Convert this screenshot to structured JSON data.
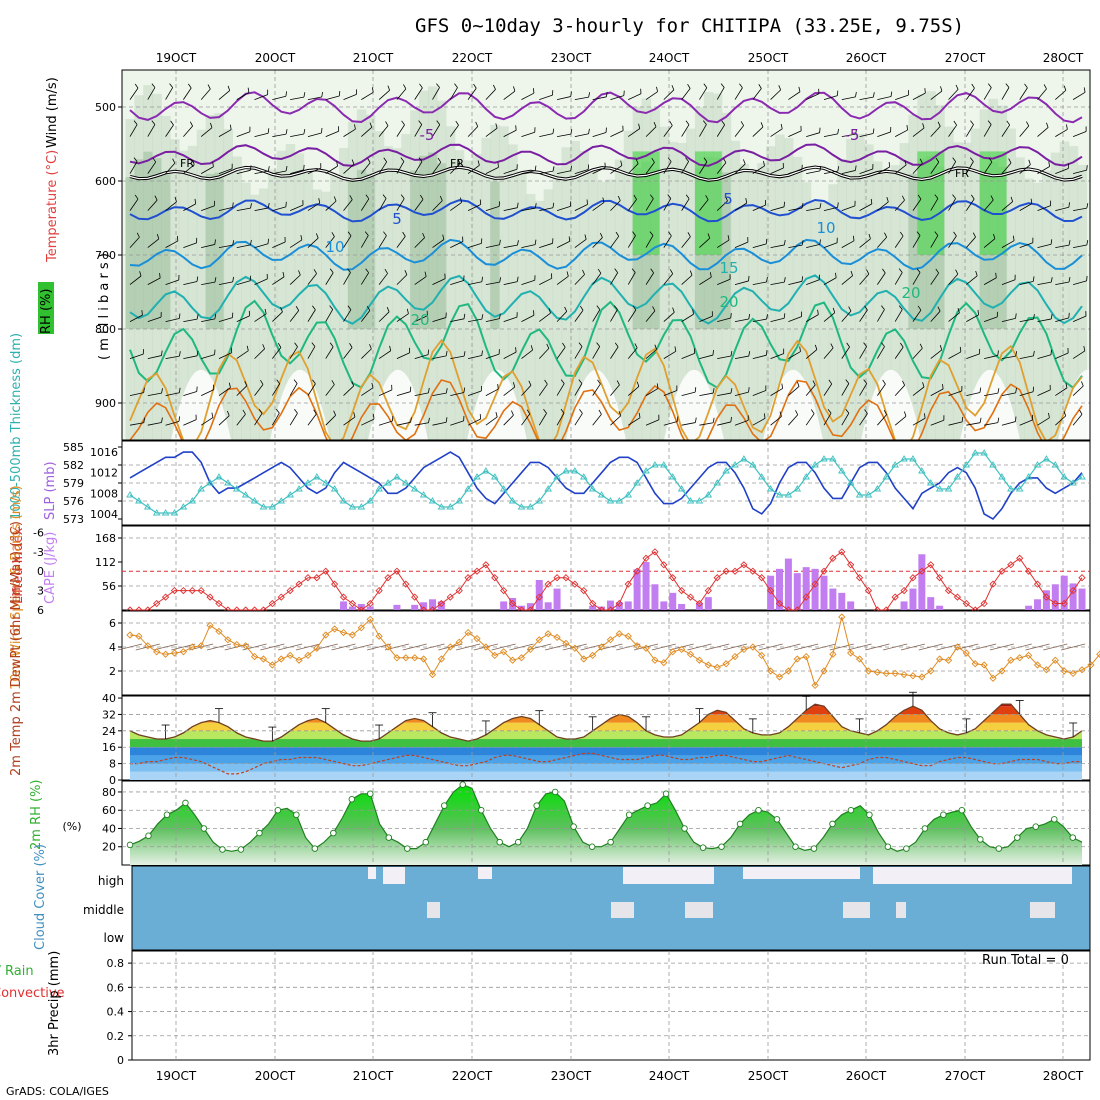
{
  "title": "GFS 0~10day 3-hourly for CHITIPA (33.25E, 9.75S)",
  "footer": "GrADS: COLA/IGES",
  "run_total": "Run Total = 0",
  "dates": [
    "19OCT",
    "20OCT",
    "21OCT",
    "22OCT",
    "23OCT",
    "24OCT",
    "25OCT",
    "26OCT",
    "27OCT",
    "28OCT"
  ],
  "colors": {
    "wind_barb": "#000000",
    "cloud": "#6aaed6",
    "cape": "#c27ef0",
    "lifted": "#e03030",
    "thick": "#40c0c0",
    "slp": "#2040c8",
    "wind10": "#e08a20",
    "rh": "#30c030"
  },
  "chart_data": [
    {
      "type": "heatmap",
      "name": "pressure-level cross section",
      "ylabel_parts": [
        "Wind (m/s)",
        "Temperature (°C)",
        "RH (%)"
      ],
      "ylabel_unit": "( m i l l i b a r s )",
      "yticks": [
        500,
        600,
        700,
        800,
        900
      ],
      "ylim": [
        450,
        950
      ],
      "freezing_label": "FR",
      "temperature_labels": [
        "-5",
        "-5",
        "5",
        "5",
        "10",
        "10",
        "15",
        "20",
        "20",
        "20"
      ]
    },
    {
      "type": "line",
      "name": "thickness and SLP",
      "ylabel_left": "1000-500mb Thickness (dm)",
      "ylabel_right": "SLP (mb)",
      "left_ticks": [
        "585",
        "582",
        "579",
        "576",
        "573"
      ],
      "right_ticks": [
        "1016",
        "1012",
        "1008",
        "1004"
      ],
      "series": [
        {
          "name": "SLP (mb)",
          "values": [
            1011,
            1012,
            1013,
            1014,
            1015,
            1015,
            1016,
            1016,
            1014,
            1010,
            1008,
            1009,
            1009,
            1010,
            1011,
            1012,
            1013,
            1014,
            1013,
            1011,
            1009,
            1008,
            1009,
            1012,
            1014,
            1013,
            1012,
            1011,
            1010,
            1008,
            1008,
            1009,
            1011,
            1013,
            1014,
            1015,
            1016,
            1015,
            1012,
            1009,
            1007,
            1006,
            1008,
            1010,
            1012,
            1014,
            1014,
            1013,
            1011,
            1009,
            1008,
            1008,
            1010,
            1012,
            1014,
            1015,
            1015,
            1014,
            1011,
            1008,
            1006,
            1006,
            1007,
            1009,
            1011,
            1013,
            1014,
            1014,
            1012,
            1009,
            1005,
            1004,
            1006,
            1010,
            1013,
            1014,
            1014,
            1012,
            1009,
            1007,
            1007,
            1010,
            1013,
            1014,
            1014,
            1012,
            1009,
            1007,
            1005,
            1008,
            1009,
            1010,
            1012,
            1013,
            1012,
            1009,
            1004,
            1003,
            1005,
            1008,
            1010,
            1011,
            1011,
            1009,
            1008,
            1009,
            1010,
            1012
          ]
        },
        {
          "name": "Thickness (dm)",
          "values": [
            577,
            576,
            575,
            574,
            574,
            574,
            575,
            576,
            578,
            579,
            580,
            579,
            578,
            577,
            576,
            575,
            575,
            576,
            577,
            578,
            579,
            580,
            579,
            578,
            576,
            575,
            575,
            576,
            578,
            579,
            580,
            579,
            578,
            577,
            576,
            575,
            575,
            576,
            578,
            580,
            581,
            580,
            578,
            576,
            575,
            575,
            576,
            578,
            580,
            581,
            581,
            580,
            578,
            577,
            576,
            576,
            577,
            579,
            581,
            582,
            582,
            580,
            578,
            576,
            576,
            577,
            579,
            581,
            582,
            583,
            582,
            580,
            578,
            577,
            577,
            578,
            580,
            582,
            583,
            583,
            581,
            579,
            577,
            577,
            578,
            580,
            582,
            583,
            583,
            581,
            579,
            578,
            578,
            580,
            582,
            584,
            584,
            582,
            580,
            578,
            578,
            580,
            582,
            583,
            582,
            580,
            579,
            580
          ]
        }
      ]
    },
    {
      "type": "bar",
      "name": "lifted index and CAPE",
      "ylabel_left": "Lifted Index",
      "ylabel_right": "CAPE (J/kg)",
      "left_ticks": [
        "-6",
        "-3",
        "0",
        "3",
        "6"
      ],
      "right_ticks": [
        "168",
        "112",
        "56"
      ],
      "series": [
        {
          "name": "CAPE (J/kg)",
          "values": [
            0,
            0,
            0,
            0,
            0,
            0,
            0,
            0,
            0,
            0,
            0,
            0,
            0,
            0,
            0,
            0,
            0,
            0,
            0,
            0,
            0,
            0,
            0,
            0,
            20,
            8,
            14,
            8,
            0,
            0,
            12,
            0,
            12,
            18,
            25,
            20,
            0,
            0,
            0,
            0,
            0,
            0,
            20,
            28,
            10,
            16,
            70,
            18,
            50,
            0,
            0,
            0,
            10,
            8,
            22,
            18,
            20,
            95,
            112,
            60,
            20,
            40,
            14,
            0,
            16,
            30,
            0,
            0,
            0,
            0,
            0,
            0,
            80,
            96,
            120,
            86,
            100,
            96,
            80,
            50,
            40,
            20,
            0,
            0,
            0,
            0,
            0,
            20,
            50,
            130,
            30,
            10,
            0,
            0,
            0,
            0,
            0,
            0,
            0,
            0,
            0,
            10,
            25,
            46,
            60,
            80,
            62,
            50
          ]
        },
        {
          "name": "Lifted Index",
          "values": [
            6,
            6,
            6,
            5,
            4,
            3,
            3,
            3,
            3,
            4,
            5,
            6,
            6,
            6,
            6,
            6,
            5,
            4,
            3,
            2,
            1,
            1,
            0,
            2,
            4,
            5,
            6,
            5,
            3,
            1,
            0,
            2,
            4,
            6,
            6,
            5,
            4,
            3,
            1,
            0,
            -1,
            1,
            3,
            5,
            6,
            6,
            4,
            2,
            1,
            1,
            2,
            3,
            5,
            6,
            6,
            5,
            2,
            0,
            -2,
            -3,
            -1,
            1,
            3,
            4,
            5,
            3,
            1,
            0,
            0,
            -1,
            0,
            1,
            3,
            5,
            6,
            6,
            4,
            2,
            0,
            -2,
            -3,
            -1,
            1,
            3,
            6,
            6,
            4,
            3,
            1,
            0,
            -1,
            1,
            3,
            4,
            5,
            6,
            5,
            2,
            0,
            -1,
            -2,
            0,
            2,
            4,
            5,
            5,
            3,
            1
          ]
        }
      ]
    },
    {
      "type": "line",
      "name": "10m wind",
      "ylabel": "10m Wind Speed & Barbs (m/s)",
      "yticks": [
        "6",
        "4",
        "2"
      ],
      "ylim": [
        0,
        7
      ],
      "series": [
        {
          "name": "10m Wind Speed",
          "values": [
            5.0,
            4.9,
            4.1,
            3.6,
            3.4,
            3.5,
            3.6,
            4.0,
            4.1,
            5.8,
            5.3,
            4.6,
            4.2,
            4.1,
            3.2,
            3.0,
            2.5,
            3.0,
            3.3,
            2.9,
            3.3,
            3.9,
            5.0,
            5.5,
            5.2,
            5.0,
            5.6,
            6.3,
            4.9,
            4.0,
            3.1,
            3.1,
            3.1,
            3.0,
            1.7,
            3.0,
            4.0,
            4.4,
            5.2,
            4.7,
            4.0,
            3.3,
            3.6,
            2.9,
            3.1,
            3.8,
            4.6,
            5.1,
            4.8,
            4.3,
            3.9,
            3.0,
            3.3,
            4.0,
            4.6,
            5.1,
            4.9,
            4.1,
            3.9,
            2.9,
            2.7,
            3.6,
            3.8,
            3.4,
            2.9,
            2.5,
            2.3,
            2.6,
            3.2,
            3.8,
            4.0,
            3.3,
            2.0,
            1.5,
            2.0,
            3.0,
            3.2,
            0.8,
            2.0,
            3.4,
            6.5,
            3.5,
            3.0,
            2.0,
            1.9,
            1.8,
            1.8,
            1.7,
            1.6,
            1.5,
            2.0,
            3.0,
            2.9,
            4.0,
            3.5,
            2.6,
            2.5,
            1.4,
            2.0,
            2.9,
            3.1,
            3.3,
            2.5,
            2.1,
            2.9,
            2.0,
            1.8,
            2.1,
            2.5,
            3.4,
            4.0,
            3.9,
            3.0,
            2.1,
            1.5,
            1.4,
            2.8
          ]
        }
      ]
    },
    {
      "type": "area",
      "name": "2m temperature",
      "ylabel": "2m Temp 2m DewPt (6hr Min/Max) (°C)",
      "yticks": [
        "40",
        "32",
        "24",
        "16",
        "8",
        "0"
      ],
      "ylim": [
        0,
        40
      ],
      "series": [
        {
          "name": "2m Temp",
          "values": [
            24,
            22,
            21,
            20,
            20,
            21,
            23,
            26,
            28,
            29,
            28,
            26,
            23,
            21,
            20,
            19,
            19,
            21,
            24,
            27,
            29,
            30,
            28,
            25,
            22,
            20,
            19,
            19,
            20,
            23,
            26,
            29,
            30,
            29,
            26,
            23,
            21,
            20,
            19,
            20,
            22,
            25,
            28,
            30,
            31,
            30,
            27,
            24,
            21,
            20,
            20,
            21,
            24,
            27,
            30,
            32,
            31,
            28,
            24,
            22,
            21,
            21,
            22,
            25,
            28,
            32,
            34,
            33,
            29,
            25,
            23,
            22,
            22,
            23,
            26,
            30,
            34,
            37,
            36,
            31,
            26,
            24,
            23,
            22,
            24,
            27,
            31,
            34,
            36,
            34,
            29,
            25,
            23,
            22,
            23,
            25,
            29,
            33,
            37,
            37,
            32,
            27,
            24,
            22,
            21,
            20,
            21,
            24
          ]
        },
        {
          "name": "2m DewPt",
          "values": [
            8,
            8,
            9,
            9,
            10,
            11,
            11,
            10,
            9,
            7,
            5,
            3,
            3,
            4,
            6,
            8,
            9,
            10,
            10,
            11,
            11,
            11,
            10,
            9,
            8,
            7,
            7,
            8,
            9,
            10,
            11,
            12,
            12,
            11,
            10,
            9,
            8,
            7,
            7,
            8,
            9,
            11,
            12,
            12,
            11,
            10,
            9,
            9,
            10,
            11,
            12,
            13,
            13,
            12,
            11,
            10,
            10,
            10,
            11,
            12,
            12,
            11,
            10,
            10,
            11,
            11,
            12,
            12,
            11,
            10,
            9,
            9,
            10,
            11,
            12,
            11,
            10,
            9,
            8,
            7,
            6,
            7,
            8,
            10,
            11,
            11,
            10,
            9,
            8,
            7,
            7,
            9,
            10,
            11,
            11,
            10,
            9,
            8,
            8,
            9,
            10,
            10,
            10,
            9,
            8,
            8,
            9,
            9
          ]
        }
      ]
    },
    {
      "type": "area",
      "name": "2m relative humidity",
      "ylabel": "2m RH (%)",
      "yticks": [
        "80",
        "60",
        "40",
        "20"
      ],
      "ylim": [
        0,
        90
      ],
      "series": [
        {
          "name": "2m RH",
          "values": [
            22,
            26,
            32,
            45,
            55,
            60,
            68,
            55,
            40,
            25,
            17,
            15,
            17,
            25,
            35,
            45,
            60,
            62,
            55,
            30,
            18,
            25,
            35,
            52,
            72,
            78,
            78,
            45,
            30,
            25,
            18,
            18,
            25,
            45,
            65,
            80,
            88,
            84,
            60,
            40,
            25,
            20,
            25,
            40,
            65,
            78,
            80,
            70,
            42,
            25,
            20,
            20,
            25,
            40,
            55,
            60,
            65,
            68,
            78,
            60,
            40,
            25,
            19,
            18,
            20,
            30,
            45,
            55,
            60,
            58,
            50,
            35,
            20,
            16,
            18,
            30,
            45,
            55,
            60,
            65,
            55,
            35,
            20,
            15,
            18,
            25,
            40,
            50,
            55,
            58,
            60,
            42,
            28,
            20,
            18,
            20,
            30,
            40,
            42,
            45,
            50,
            42,
            30,
            25
          ]
        }
      ]
    },
    {
      "type": "bar",
      "name": "cloud cover",
      "ylabel": "Cloud Cover (%)",
      "yticks": [
        "high",
        "middle",
        "low"
      ]
    },
    {
      "type": "bar",
      "name": "3hr precipitation",
      "ylabel": "3hr Precip (mm)",
      "legend": [
        "Total / Rain",
        "Convective"
      ],
      "yticks": [
        "0.8",
        "0.6",
        "0.4",
        "0.2",
        "0"
      ],
      "ylim": [
        0,
        0.9
      ],
      "values": []
    }
  ]
}
